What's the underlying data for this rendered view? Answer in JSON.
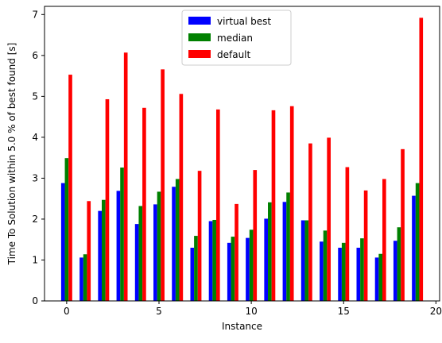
{
  "chart_data": {
    "type": "bar",
    "xlabel": "Instance",
    "ylabel": "Time To Solution within 5.0 % of best found [s]",
    "xlim": [
      -1.2,
      20.2
    ],
    "ylim": [
      0,
      7.2
    ],
    "xticks": [
      0,
      5,
      10,
      15,
      20
    ],
    "yticks": [
      0,
      1,
      2,
      3,
      4,
      5,
      6,
      7
    ],
    "x": [
      0,
      1,
      2,
      3,
      4,
      5,
      6,
      7,
      8,
      9,
      10,
      11,
      12,
      13,
      14,
      15,
      16,
      17,
      18,
      19
    ],
    "bar_width": 0.2,
    "legend_position": "upper center",
    "grid": false,
    "series": [
      {
        "name": "virtual best",
        "color": "#0000ff",
        "values": [
          2.88,
          1.06,
          2.2,
          2.69,
          1.88,
          2.36,
          2.79,
          1.3,
          1.95,
          1.42,
          1.54,
          2.01,
          2.42,
          1.97,
          1.45,
          1.3,
          1.3,
          1.06,
          1.47,
          2.57
        ]
      },
      {
        "name": "median",
        "color": "#008000",
        "values": [
          3.49,
          1.14,
          2.47,
          3.26,
          2.32,
          2.67,
          2.98,
          1.59,
          1.98,
          1.57,
          1.74,
          2.41,
          2.65,
          1.97,
          1.72,
          1.42,
          1.53,
          1.15,
          1.8,
          2.88
        ]
      },
      {
        "name": "default",
        "color": "#ff0000",
        "values": [
          5.53,
          2.44,
          4.93,
          6.07,
          4.72,
          5.66,
          5.06,
          3.18,
          4.68,
          2.37,
          3.2,
          4.66,
          4.76,
          3.85,
          3.99,
          3.27,
          2.7,
          2.98,
          3.71,
          6.92
        ]
      }
    ]
  }
}
